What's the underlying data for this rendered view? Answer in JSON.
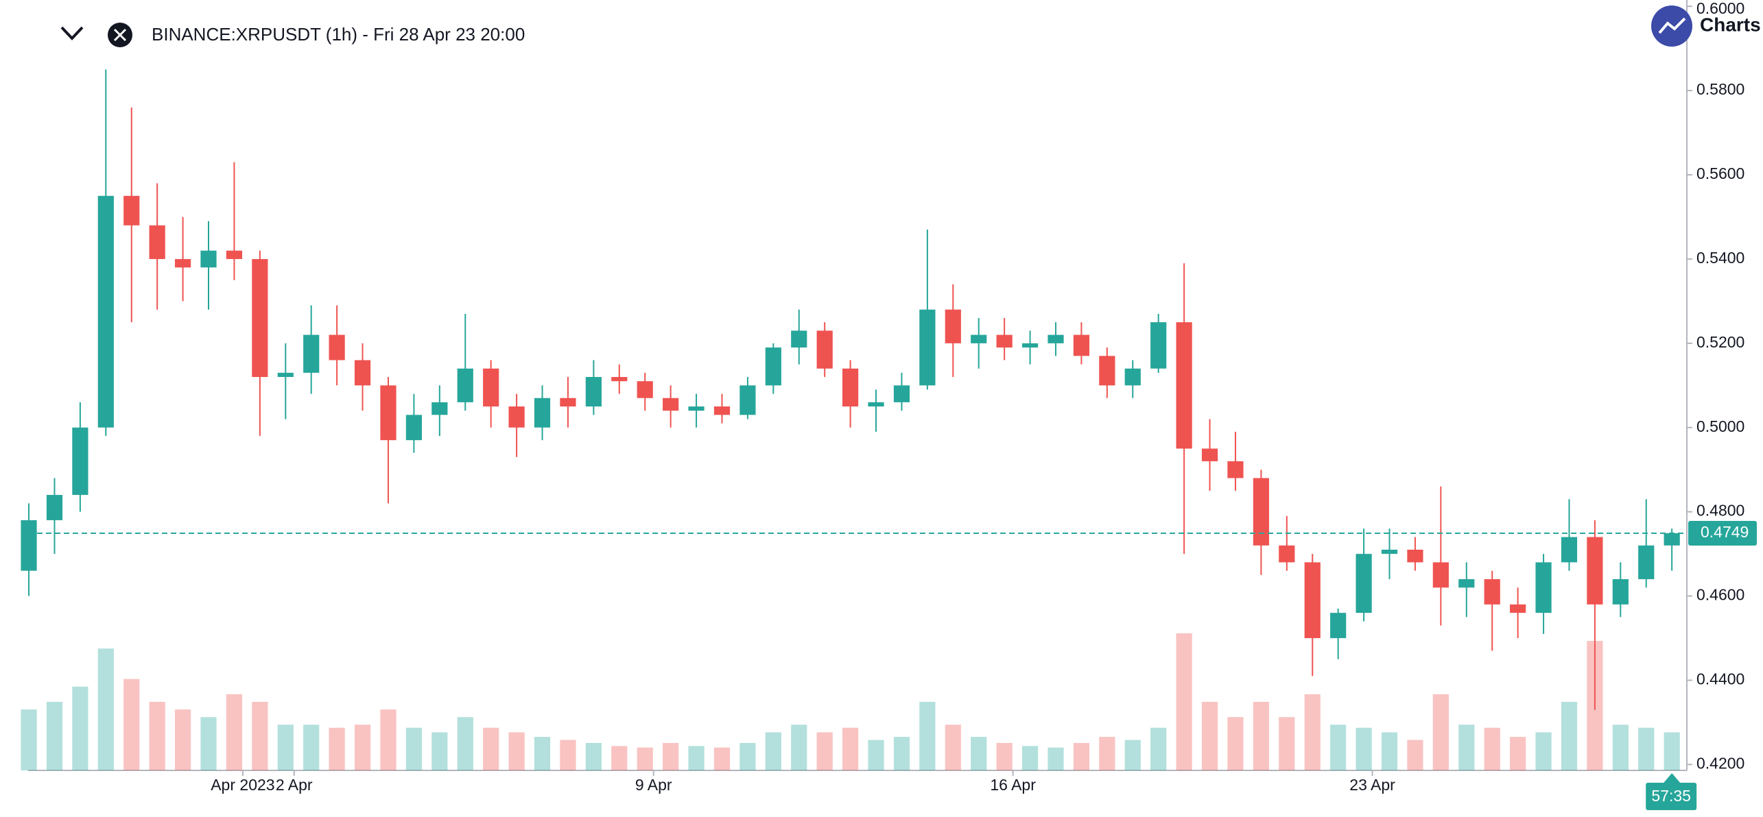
{
  "chart_data": {
    "type": "candlestick",
    "title": "BINANCE:XRPUSDT (1h) - Fri 28 Apr 23 20:00",
    "logo_text": "Charts",
    "countdown": "57:35",
    "up_color": "#26a69a",
    "down_color": "#ef5350",
    "x": [
      "2023-03-27 20:00",
      "2023-03-28 08:00",
      "2023-03-28 20:00",
      "2023-03-29 08:00",
      "2023-03-29 20:00",
      "2023-03-30 08:00",
      "2023-03-30 20:00",
      "2023-03-31 08:00",
      "2023-03-31 20:00",
      "2023-04-01 08:00",
      "2023-04-01 20:00",
      "2023-04-02 08:00",
      "2023-04-02 20:00",
      "2023-04-03 08:00",
      "2023-04-03 20:00",
      "2023-04-04 08:00",
      "2023-04-04 20:00",
      "2023-04-05 08:00",
      "2023-04-05 20:00",
      "2023-04-06 08:00",
      "2023-04-06 20:00",
      "2023-04-07 08:00",
      "2023-04-07 20:00",
      "2023-04-08 08:00",
      "2023-04-08 20:00",
      "2023-04-09 08:00",
      "2023-04-09 20:00",
      "2023-04-10 08:00",
      "2023-04-10 20:00",
      "2023-04-11 08:00",
      "2023-04-11 20:00",
      "2023-04-12 08:00",
      "2023-04-12 20:00",
      "2023-04-13 08:00",
      "2023-04-13 20:00",
      "2023-04-14 08:00",
      "2023-04-14 20:00",
      "2023-04-15 08:00",
      "2023-04-15 20:00",
      "2023-04-16 08:00",
      "2023-04-16 20:00",
      "2023-04-17 08:00",
      "2023-04-17 20:00",
      "2023-04-18 08:00",
      "2023-04-18 20:00",
      "2023-04-19 08:00",
      "2023-04-19 20:00",
      "2023-04-20 08:00",
      "2023-04-20 20:00",
      "2023-04-21 08:00",
      "2023-04-21 20:00",
      "2023-04-22 08:00",
      "2023-04-22 20:00",
      "2023-04-23 08:00",
      "2023-04-23 20:00",
      "2023-04-24 08:00",
      "2023-04-24 20:00",
      "2023-04-25 08:00",
      "2023-04-25 20:00",
      "2023-04-26 08:00",
      "2023-04-26 20:00",
      "2023-04-27 08:00",
      "2023-04-27 20:00",
      "2023-04-28 08:00",
      "2023-04-28 20:00"
    ],
    "open": [
      0.466,
      0.478,
      0.484,
      0.5,
      0.555,
      0.548,
      0.54,
      0.538,
      0.542,
      0.54,
      0.512,
      0.513,
      0.522,
      0.516,
      0.51,
      0.497,
      0.503,
      0.506,
      0.514,
      0.505,
      0.5,
      0.507,
      0.505,
      0.512,
      0.511,
      0.507,
      0.504,
      0.505,
      0.503,
      0.51,
      0.519,
      0.523,
      0.514,
      0.505,
      0.506,
      0.51,
      0.528,
      0.52,
      0.522,
      0.519,
      0.52,
      0.522,
      0.517,
      0.51,
      0.514,
      0.525,
      0.495,
      0.492,
      0.488,
      0.472,
      0.468,
      0.45,
      0.456,
      0.47,
      0.471,
      0.468,
      0.462,
      0.464,
      0.458,
      0.456,
      0.468,
      0.474,
      0.458,
      0.464,
      0.472
    ],
    "high": [
      0.482,
      0.488,
      0.506,
      0.585,
      0.576,
      0.558,
      0.55,
      0.549,
      0.563,
      0.542,
      0.52,
      0.529,
      0.529,
      0.52,
      0.512,
      0.508,
      0.51,
      0.527,
      0.516,
      0.508,
      0.51,
      0.512,
      0.516,
      0.515,
      0.513,
      0.51,
      0.508,
      0.508,
      0.512,
      0.52,
      0.528,
      0.525,
      0.516,
      0.509,
      0.513,
      0.547,
      0.534,
      0.526,
      0.526,
      0.523,
      0.525,
      0.525,
      0.519,
      0.516,
      0.527,
      0.539,
      0.502,
      0.499,
      0.49,
      0.479,
      0.47,
      0.457,
      0.476,
      0.476,
      0.474,
      0.486,
      0.468,
      0.466,
      0.462,
      0.47,
      0.483,
      0.478,
      0.468,
      0.483,
      0.476
    ],
    "low": [
      0.46,
      0.47,
      0.48,
      0.498,
      0.525,
      0.528,
      0.53,
      0.528,
      0.535,
      0.498,
      0.502,
      0.508,
      0.51,
      0.504,
      0.482,
      0.494,
      0.498,
      0.504,
      0.5,
      0.493,
      0.497,
      0.5,
      0.503,
      0.508,
      0.504,
      0.5,
      0.5,
      0.501,
      0.502,
      0.508,
      0.515,
      0.512,
      0.5,
      0.499,
      0.504,
      0.509,
      0.512,
      0.514,
      0.516,
      0.515,
      0.517,
      0.515,
      0.507,
      0.507,
      0.513,
      0.47,
      0.485,
      0.485,
      0.465,
      0.466,
      0.441,
      0.445,
      0.454,
      0.464,
      0.466,
      0.453,
      0.455,
      0.447,
      0.45,
      0.451,
      0.466,
      0.433,
      0.455,
      0.462,
      0.466
    ],
    "close": [
      0.478,
      0.484,
      0.5,
      0.555,
      0.548,
      0.54,
      0.538,
      0.542,
      0.54,
      0.512,
      0.513,
      0.522,
      0.516,
      0.51,
      0.497,
      0.503,
      0.506,
      0.514,
      0.505,
      0.5,
      0.507,
      0.505,
      0.512,
      0.511,
      0.507,
      0.504,
      0.505,
      0.503,
      0.51,
      0.519,
      0.523,
      0.514,
      0.505,
      0.506,
      0.51,
      0.528,
      0.52,
      0.522,
      0.519,
      0.52,
      0.522,
      0.517,
      0.51,
      0.514,
      0.525,
      0.495,
      0.492,
      0.488,
      0.472,
      0.468,
      0.45,
      0.456,
      0.47,
      0.471,
      0.468,
      0.462,
      0.464,
      0.458,
      0.456,
      0.468,
      0.474,
      0.458,
      0.464,
      0.472,
      0.4749
    ],
    "volume": [
      40,
      45,
      55,
      80,
      60,
      45,
      40,
      35,
      50,
      45,
      30,
      30,
      28,
      30,
      40,
      28,
      25,
      35,
      28,
      25,
      22,
      20,
      18,
      16,
      15,
      18,
      16,
      15,
      18,
      25,
      30,
      25,
      28,
      20,
      22,
      45,
      30,
      22,
      18,
      16,
      15,
      18,
      22,
      20,
      28,
      90,
      45,
      35,
      45,
      35,
      50,
      30,
      28,
      25,
      20,
      50,
      30,
      28,
      22,
      25,
      45,
      85,
      30,
      28,
      25
    ],
    "xlim": [
      "2023-03-27 19:40",
      "2023-04-29 03:00"
    ],
    "xticks": [
      {
        "value": "2023-04-01 00:00",
        "label": "Apr 2023"
      },
      {
        "value": "2023-04-02 00:00",
        "label": "2 Apr"
      },
      {
        "value": "2023-04-09 00:00",
        "label": "9 Apr"
      },
      {
        "value": "2023-04-16 00:00",
        "label": "16 Apr"
      },
      {
        "value": "2023-04-23 00:00",
        "label": "23 Apr"
      }
    ],
    "ylim": [
      0.4186,
      0.6015
    ],
    "yticks": [
      {
        "value": 0.42,
        "label": "0.4200"
      },
      {
        "value": 0.44,
        "label": "0.4400"
      },
      {
        "value": 0.46,
        "label": "0.4600"
      },
      {
        "value": 0.48,
        "label": "0.4800"
      },
      {
        "value": 0.5,
        "label": "0.5000"
      },
      {
        "value": 0.52,
        "label": "0.5200"
      },
      {
        "value": 0.54,
        "label": "0.5400"
      },
      {
        "value": 0.56,
        "label": "0.5600"
      },
      {
        "value": 0.58,
        "label": "0.5800"
      },
      {
        "value": 0.6,
        "label": "0.6000"
      }
    ]
  }
}
